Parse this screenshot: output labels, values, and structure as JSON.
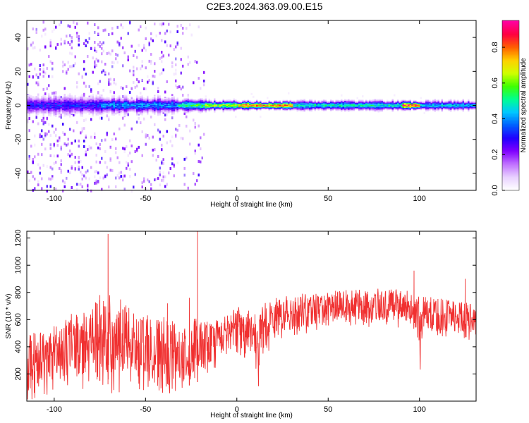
{
  "title": "C2E3.2024.363.09.00.E15",
  "colors": {
    "snr_line": "#f03030",
    "colormap": [
      "#ffffff",
      "#e8d0ff",
      "#c070ff",
      "#8000ff",
      "#2000ff",
      "#0060ff",
      "#00c8ff",
      "#00ff90",
      "#40ff00",
      "#d0ff00",
      "#ffd000",
      "#ff6000",
      "#ff0040",
      "#ff00a0"
    ]
  },
  "chart_data": [
    {
      "type": "heatmap",
      "title": "C2E3.2024.363.09.00.E15",
      "xlabel": "Height of straight line (km)",
      "ylabel": "Frequency (Hz)",
      "xlim": [
        -115,
        131
      ],
      "ylim": [
        -50,
        50
      ],
      "xticks": [
        -100,
        -50,
        0,
        50,
        100
      ],
      "yticks": [
        -40,
        -20,
        0,
        20,
        40
      ],
      "colorbar": {
        "label": "Normalized spectral amplitude",
        "range": [
          0,
          0.95
        ],
        "ticks": [
          0.0,
          0.2,
          0.4,
          0.6,
          0.8
        ]
      },
      "band": {
        "center_hz": 0,
        "segments": [
          {
            "x_start": -115,
            "x_end": -75,
            "peak": 0.35,
            "halfwidth_hz": 5,
            "noise_level": 0.3
          },
          {
            "x_start": -75,
            "x_end": -32,
            "peak": 0.45,
            "halfwidth_hz": 4,
            "noise_level": 0.25
          },
          {
            "x_start": -32,
            "x_end": -18,
            "peak": 0.6,
            "halfwidth_hz": 3,
            "noise_level": 0.15
          },
          {
            "x_start": -18,
            "x_end": 0,
            "peak": 0.7,
            "halfwidth_hz": 2.5,
            "noise_level": 0.02
          },
          {
            "x_start": 0,
            "x_end": 30,
            "peak": 0.9,
            "halfwidth_hz": 2,
            "noise_level": 0.01
          },
          {
            "x_start": 30,
            "x_end": 90,
            "peak": 0.55,
            "halfwidth_hz": 2.5,
            "noise_level": 0.01
          },
          {
            "x_start": 90,
            "x_end": 100,
            "peak": 0.95,
            "halfwidth_hz": 2,
            "noise_level": 0.01
          },
          {
            "x_start": 100,
            "x_end": 131,
            "peak": 0.5,
            "halfwidth_hz": 2.5,
            "noise_level": 0.01
          }
        ]
      }
    },
    {
      "type": "line",
      "xlabel": "Height of straight line (km)",
      "ylabel": "SNR (10 * v/v)",
      "xlim": [
        -115,
        131
      ],
      "ylim": [
        0,
        1250
      ],
      "xticks": [
        -100,
        -50,
        0,
        50,
        100
      ],
      "yticks": [
        200,
        400,
        600,
        800,
        1000,
        1200
      ],
      "envelope": {
        "x": [
          -115,
          -100,
          -90,
          -80,
          -70,
          -60,
          -50,
          -40,
          -30,
          -22,
          -20,
          -15,
          -10,
          -5,
          0,
          5,
          10,
          12,
          15,
          20,
          30,
          40,
          50,
          60,
          70,
          80,
          90,
          98,
          100,
          102,
          110,
          120,
          131
        ],
        "low": [
          0,
          50,
          80,
          40,
          60,
          40,
          60,
          30,
          10,
          20,
          100,
          200,
          260,
          300,
          330,
          310,
          280,
          80,
          300,
          420,
          460,
          500,
          520,
          540,
          540,
          540,
          540,
          520,
          150,
          480,
          460,
          440,
          420
        ],
        "high": [
          500,
          560,
          650,
          720,
          800,
          720,
          640,
          620,
          560,
          620,
          600,
          580,
          620,
          640,
          700,
          680,
          640,
          650,
          720,
          760,
          780,
          800,
          810,
          820,
          820,
          830,
          820,
          800,
          760,
          780,
          760,
          740,
          720
        ]
      },
      "spikes": [
        {
          "x": -70.5,
          "y": 1230
        },
        {
          "x": -75,
          "y": 780
        },
        {
          "x": -38,
          "y": 720
        },
        {
          "x": -21.5,
          "y": 1250
        },
        {
          "x": -26,
          "y": 760
        },
        {
          "x": 97,
          "y": 960
        },
        {
          "x": 125,
          "y": 900
        }
      ]
    }
  ]
}
